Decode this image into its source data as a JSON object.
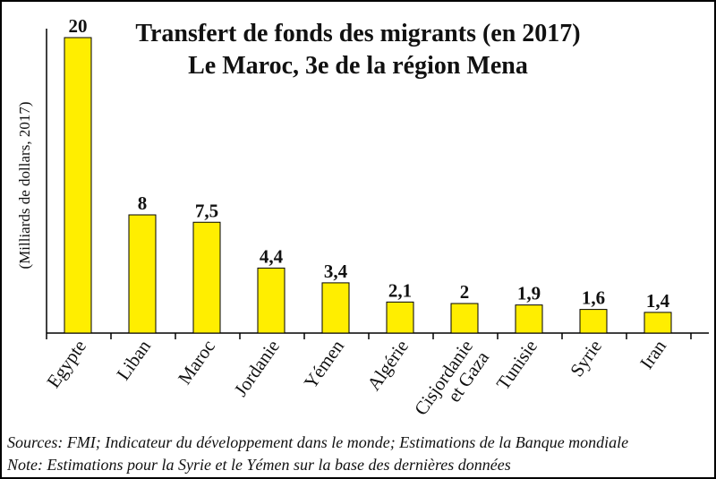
{
  "chart_data": {
    "type": "bar",
    "title": "Transfert de fonds des migrants (en 2017)",
    "subtitle": "Le Maroc, 3e de la région Mena",
    "xlabel": "",
    "ylabel": "(Milliards de dollars, 2017)",
    "categories": [
      "Egypte",
      "Liban",
      "Maroc",
      "Jordanie",
      "Yémen",
      "Algérie",
      "Cisjordanie et Gaza",
      "Tunisie",
      "Syrie",
      "Iran"
    ],
    "category_lines": [
      [
        "Egypte"
      ],
      [
        "Liban"
      ],
      [
        "Maroc"
      ],
      [
        "Jordanie"
      ],
      [
        "Yémen"
      ],
      [
        "Algérie"
      ],
      [
        "Cisjordanie",
        "et Gaza"
      ],
      [
        "Tunisie"
      ],
      [
        "Syrie"
      ],
      [
        "Iran"
      ]
    ],
    "values": [
      20,
      8,
      7.5,
      4.4,
      3.4,
      2.1,
      2,
      1.9,
      1.6,
      1.4
    ],
    "value_labels": [
      "20",
      "8",
      "7,5",
      "4,4",
      "3,4",
      "2,1",
      "2",
      "1,9",
      "1,6",
      "1,4"
    ],
    "ylim": [
      0,
      20
    ],
    "grid": false,
    "legend": "none",
    "colors": {
      "bar_fill": "#ffee00",
      "bar_stroke": "#000000",
      "axis": "#000000"
    }
  },
  "footer": {
    "sources": "Sources: FMI; Indicateur du développement dans le monde; Estimations de la Banque mondiale",
    "note": "Note: Estimations pour la Syrie et le Yémen sur la base des dernières données"
  }
}
